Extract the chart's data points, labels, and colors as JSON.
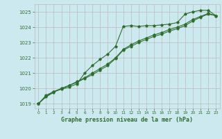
{
  "title": "Graphe pression niveau de la mer (hPa)",
  "background_color": "#cce9f0",
  "grid_color": "#bbbbbb",
  "line_color": "#2d6e2d",
  "xlim": [
    -0.5,
    23.5
  ],
  "ylim": [
    1018.7,
    1025.5
  ],
  "yticks": [
    1019,
    1020,
    1021,
    1022,
    1023,
    1024,
    1025
  ],
  "xticks": [
    0,
    1,
    2,
    3,
    4,
    5,
    6,
    7,
    8,
    9,
    10,
    11,
    12,
    13,
    14,
    15,
    16,
    17,
    18,
    19,
    20,
    21,
    22,
    23
  ],
  "series1_x": [
    0,
    1,
    2,
    3,
    4,
    5,
    6,
    7,
    8,
    9,
    10,
    11,
    12,
    13,
    14,
    15,
    16,
    17,
    18,
    19,
    20,
    21,
    22,
    23
  ],
  "series1_y": [
    1019.0,
    1019.55,
    1019.8,
    1019.95,
    1020.1,
    1020.3,
    1021.0,
    1021.5,
    1021.9,
    1022.25,
    1022.75,
    1024.05,
    1024.1,
    1024.05,
    1024.1,
    1024.1,
    1024.15,
    1024.2,
    1024.3,
    1024.85,
    1025.0,
    1025.1,
    1025.1,
    1024.75
  ],
  "series2_x": [
    0,
    1,
    2,
    3,
    4,
    5,
    6,
    7,
    8,
    9,
    10,
    11,
    12,
    13,
    14,
    15,
    16,
    17,
    18,
    19,
    20,
    21,
    22,
    23
  ],
  "series2_y": [
    1019.0,
    1019.45,
    1019.75,
    1020.0,
    1020.2,
    1020.4,
    1020.65,
    1020.9,
    1021.2,
    1021.5,
    1021.95,
    1022.5,
    1022.75,
    1023.0,
    1023.2,
    1023.4,
    1023.55,
    1023.75,
    1023.9,
    1024.1,
    1024.4,
    1024.65,
    1024.85,
    1024.75
  ],
  "series3_x": [
    0,
    1,
    2,
    3,
    4,
    5,
    6,
    7,
    8,
    9,
    10,
    11,
    12,
    13,
    14,
    15,
    16,
    17,
    18,
    19,
    20,
    21,
    22,
    23
  ],
  "series3_y": [
    1019.0,
    1019.5,
    1019.8,
    1020.0,
    1020.2,
    1020.45,
    1020.7,
    1021.0,
    1021.3,
    1021.6,
    1022.0,
    1022.55,
    1022.85,
    1023.1,
    1023.3,
    1023.5,
    1023.65,
    1023.85,
    1024.0,
    1024.2,
    1024.5,
    1024.7,
    1024.9,
    1024.75
  ]
}
